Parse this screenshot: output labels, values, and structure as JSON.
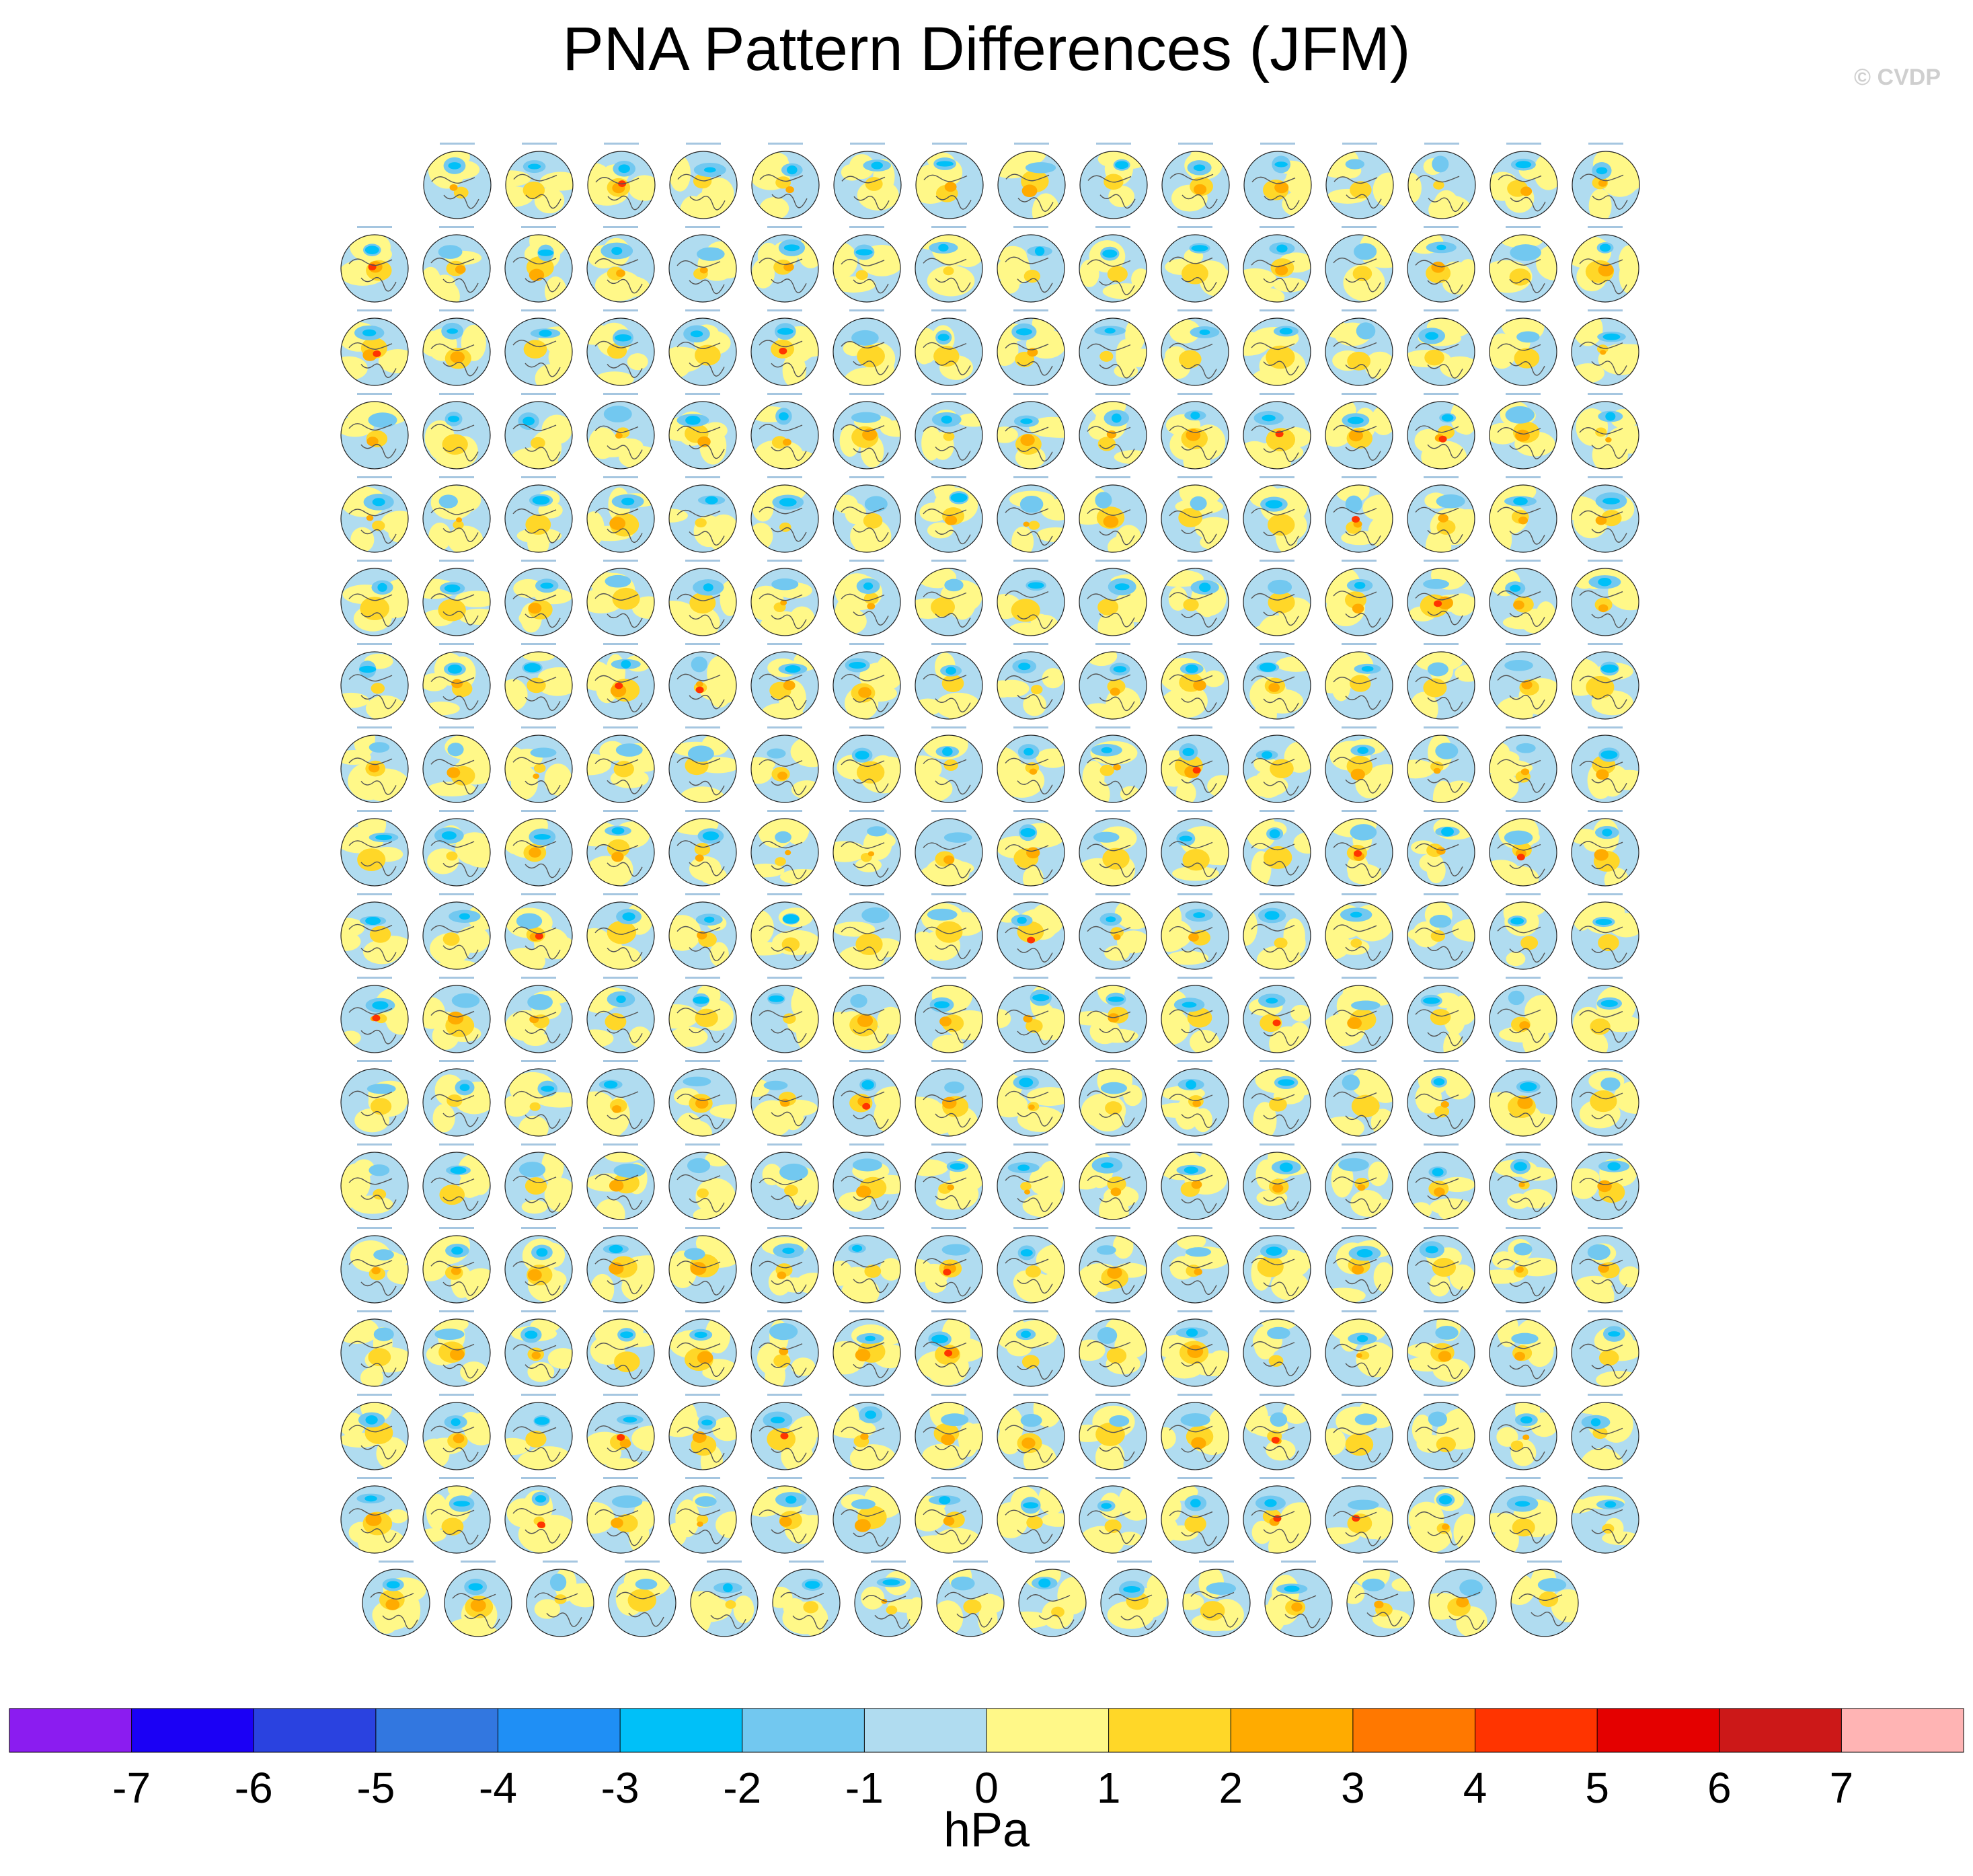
{
  "title": "PNA Pattern Differences (JFM)",
  "watermark": "© CVDP",
  "chart_data": {
    "type": "heatmap",
    "title": "PNA Pattern Differences (JFM)",
    "description_units": "hPa",
    "panel_grid": {
      "rows": 18,
      "panels_per_row": [
        15,
        16,
        16,
        16,
        16,
        16,
        16,
        16,
        16,
        16,
        16,
        16,
        16,
        16,
        16,
        16,
        16,
        15
      ],
      "panel_kind": "polar stereographic map (Northern Hemisphere)"
    },
    "colorbar": {
      "orientation": "horizontal",
      "label": "hPa",
      "tick_labels": [
        "-7",
        "-6",
        "-5",
        "-4",
        "-3",
        "-2",
        "-1",
        "0",
        "1",
        "2",
        "3",
        "4",
        "5",
        "6",
        "7"
      ],
      "levels": [
        -7,
        -6,
        -5,
        -4,
        -3,
        -2,
        -1,
        0,
        1,
        2,
        3,
        4,
        5,
        6,
        7
      ],
      "colors": [
        "#8b1cf0",
        "#1b00f5",
        "#2a42e0",
        "#3277e0",
        "#1f8ff5",
        "#00c0f8",
        "#72c8f0",
        "#b0dcf0",
        "#fff888",
        "#ffd728",
        "#ffab00",
        "#ff7800",
        "#ff3400",
        "#e40000",
        "#cc1818",
        "#ffb4b4"
      ]
    }
  }
}
